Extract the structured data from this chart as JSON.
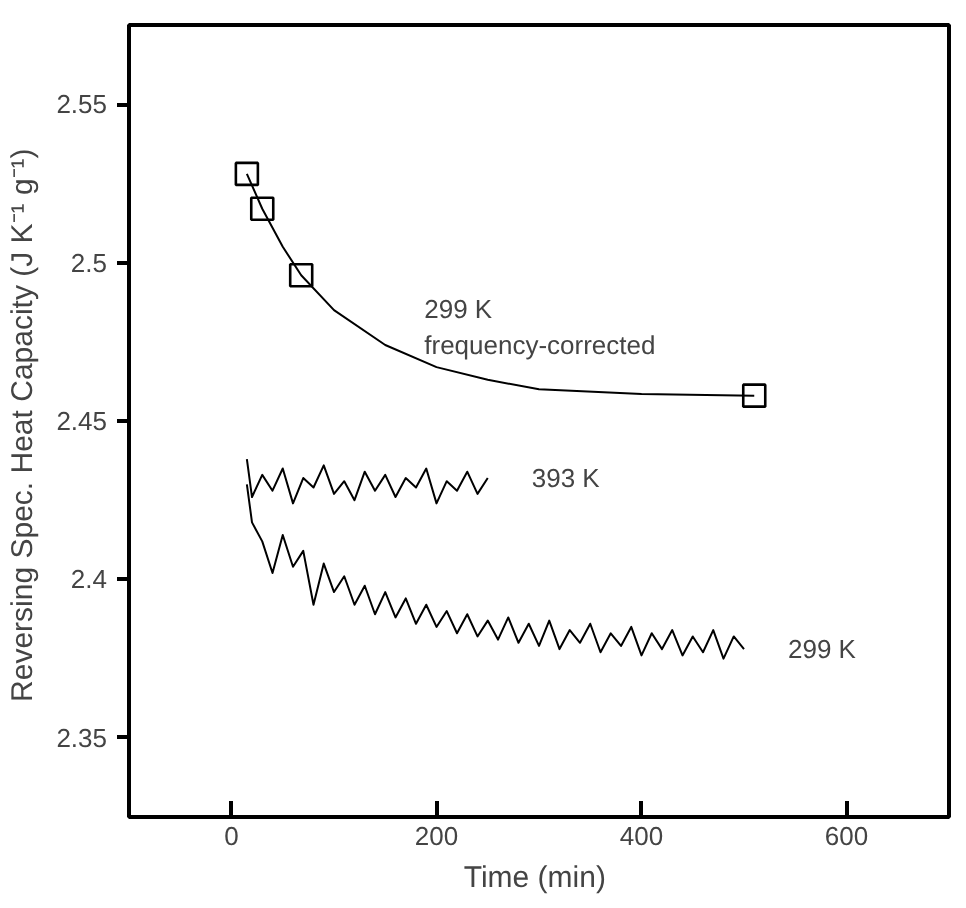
{
  "chart_data": {
    "type": "line",
    "xlabel": "Time  (min)",
    "ylabel": "Reversing Spec. Heat Capacity  (J K⁻¹ g⁻¹)",
    "xlim": [
      -100,
      700
    ],
    "xticks": [
      0,
      200,
      400,
      600
    ],
    "ylim": [
      2.325,
      2.575
    ],
    "yticks": [
      2.35,
      2.4,
      2.45,
      2.5,
      2.55
    ],
    "grid": false,
    "legend": false,
    "series": [
      {
        "type": "scatter",
        "marker": "square",
        "color": "#000000",
        "x": [
          15,
          30,
          68,
          510
        ],
        "values": [
          2.528,
          2.517,
          2.496,
          2.458
        ]
      },
      {
        "name": "299 K\nfrequency-corrected",
        "marker": "none",
        "color": "#000000",
        "x": [
          15,
          30,
          50,
          68,
          100,
          150,
          200,
          250,
          300,
          400,
          510
        ],
        "values": [
          2.528,
          2.517,
          2.505,
          2.496,
          2.485,
          2.474,
          2.467,
          2.463,
          2.46,
          2.4585,
          2.458
        ]
      },
      {
        "name": "393 K",
        "marker": "none",
        "color": "#000000",
        "x": [
          15,
          20,
          30,
          40,
          50,
          60,
          70,
          80,
          90,
          100,
          110,
          120,
          130,
          140,
          150,
          160,
          170,
          180,
          190,
          200,
          210,
          220,
          230,
          240,
          250
        ],
        "values": [
          2.438,
          2.426,
          2.433,
          2.428,
          2.435,
          2.424,
          2.432,
          2.429,
          2.436,
          2.427,
          2.431,
          2.425,
          2.434,
          2.428,
          2.433,
          2.426,
          2.432,
          2.429,
          2.435,
          2.424,
          2.431,
          2.428,
          2.434,
          2.427,
          2.432
        ]
      },
      {
        "name": "299 K",
        "marker": "none",
        "color": "#000000",
        "x": [
          15,
          20,
          30,
          40,
          50,
          60,
          70,
          80,
          90,
          100,
          110,
          120,
          130,
          140,
          150,
          160,
          170,
          180,
          190,
          200,
          210,
          220,
          230,
          240,
          250,
          260,
          270,
          280,
          290,
          300,
          310,
          320,
          330,
          340,
          350,
          360,
          370,
          380,
          390,
          400,
          410,
          420,
          430,
          440,
          450,
          460,
          470,
          480,
          490,
          500
        ],
        "values": [
          2.43,
          2.418,
          2.412,
          2.402,
          2.414,
          2.404,
          2.409,
          2.392,
          2.405,
          2.396,
          2.401,
          2.392,
          2.398,
          2.389,
          2.396,
          2.388,
          2.394,
          2.386,
          2.392,
          2.385,
          2.39,
          2.383,
          2.389,
          2.382,
          2.387,
          2.381,
          2.388,
          2.38,
          2.386,
          2.379,
          2.387,
          2.378,
          2.384,
          2.38,
          2.386,
          2.377,
          2.383,
          2.379,
          2.385,
          2.376,
          2.383,
          2.378,
          2.384,
          2.376,
          2.382,
          2.377,
          2.384,
          2.375,
          2.382,
          2.378
        ]
      }
    ]
  }
}
